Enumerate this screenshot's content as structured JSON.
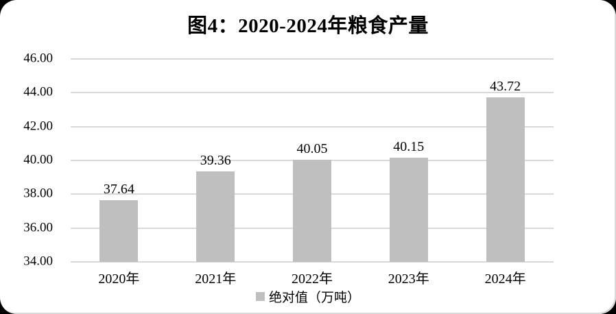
{
  "frame": {
    "background_color": "#000000",
    "card_color": "#ffffff"
  },
  "chart_data": {
    "type": "bar",
    "title": "图4：2020-2024年粮食产量",
    "categories": [
      "2020年",
      "2021年",
      "2022年",
      "2023年",
      "2024年"
    ],
    "values": [
      37.64,
      39.36,
      40.05,
      40.15,
      43.72
    ],
    "data_labels": [
      "37.64",
      "39.36",
      "40.05",
      "40.15",
      "43.72"
    ],
    "legend_label": "绝对值（万吨）",
    "legend_position": "bottom-center",
    "ylim": [
      34,
      46
    ],
    "ytick_step": 2,
    "yticks": [
      "46.00",
      "44.00",
      "42.00",
      "40.00",
      "38.00",
      "36.00",
      "34.00"
    ],
    "grid": true,
    "xlabel": "",
    "ylabel": "",
    "bar_color": "#bfbfbf",
    "gridline_color": "#d9d9d9",
    "text_color": "#000000"
  }
}
